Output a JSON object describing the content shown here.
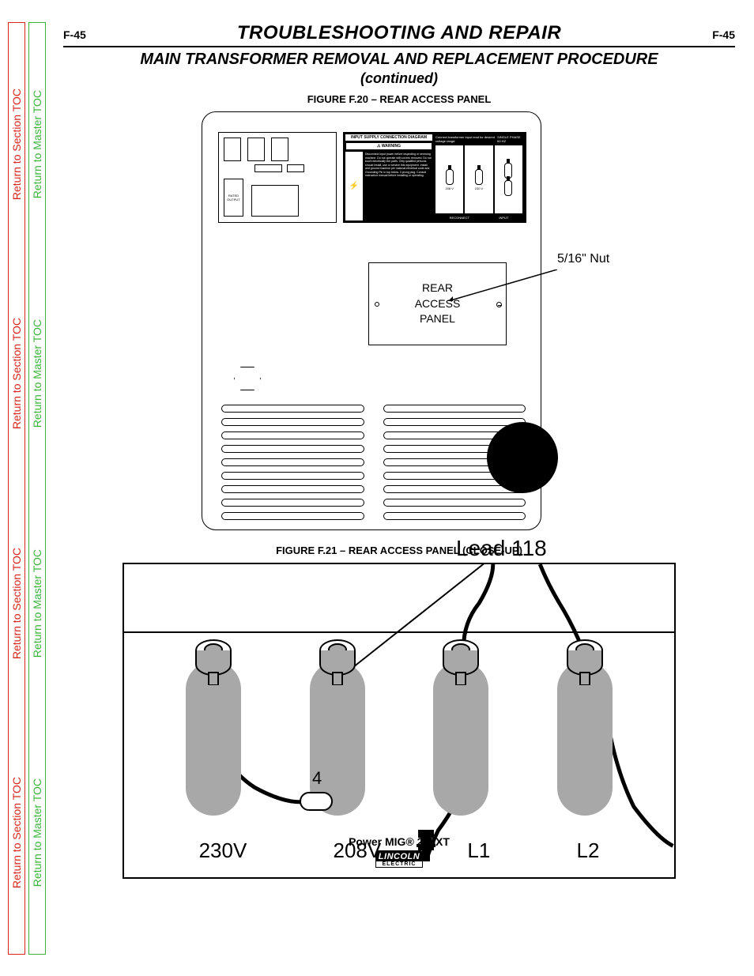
{
  "page_ref": "F-45",
  "section_title": "TROUBLESHOOTING AND REPAIR",
  "subsection_title": "MAIN TRANSFORMER REMOVAL AND REPLACEMENT PROCEDURE",
  "continued": "(continued)",
  "side_nav": {
    "section_toc": "Return to Section TOC",
    "master_toc": "Return to Master TOC",
    "section_color": "#d9261c",
    "master_color": "#3cb43c"
  },
  "figure1": {
    "caption": "FIGURE F.20 – REAR ACCESS PANEL",
    "rear_access_label": "REAR\nACCESS\nPANEL",
    "callout_nut": "5/16\" Nut",
    "vent_rows": 9,
    "warning_block": {
      "title": "INPUT SUPPLY CONNECTION DIAGRAM",
      "warn": "WARNING",
      "head_left": "Connect transformer input lead for desired voltage range:",
      "head_right": "SINGLE PHASE 60 HZ",
      "text": "Disconnect input power before inspecting or servicing machine. Do not operate with covers removed. Do not touch electrically live parts. Only qualified persons should install, use or service this equipment. Install and ground machine per national electrical code and Grounding Pin in top below. 3 prong plug. Consult instruction manual before installing or operating.",
      "foot_left": "208 V",
      "foot_mid": "230 V",
      "foot_r1": "RECONNECT",
      "foot_r2": "INPUT"
    },
    "rating_small": "RATED OUTPUT"
  },
  "figure2": {
    "caption": "FIGURE F.21 – REAR ACCESS PANEL (CLOSE-UP)",
    "callout_lead": "Lead 118",
    "link_num": "4",
    "terminal_labels": [
      "230V",
      "208V",
      "L1",
      "L2"
    ],
    "terminal_color": "#a9a8a8"
  },
  "footer": {
    "model": "Power MIG® 215XT",
    "brand": "LINCOLN",
    "brand_sub": "ELECTRIC"
  }
}
